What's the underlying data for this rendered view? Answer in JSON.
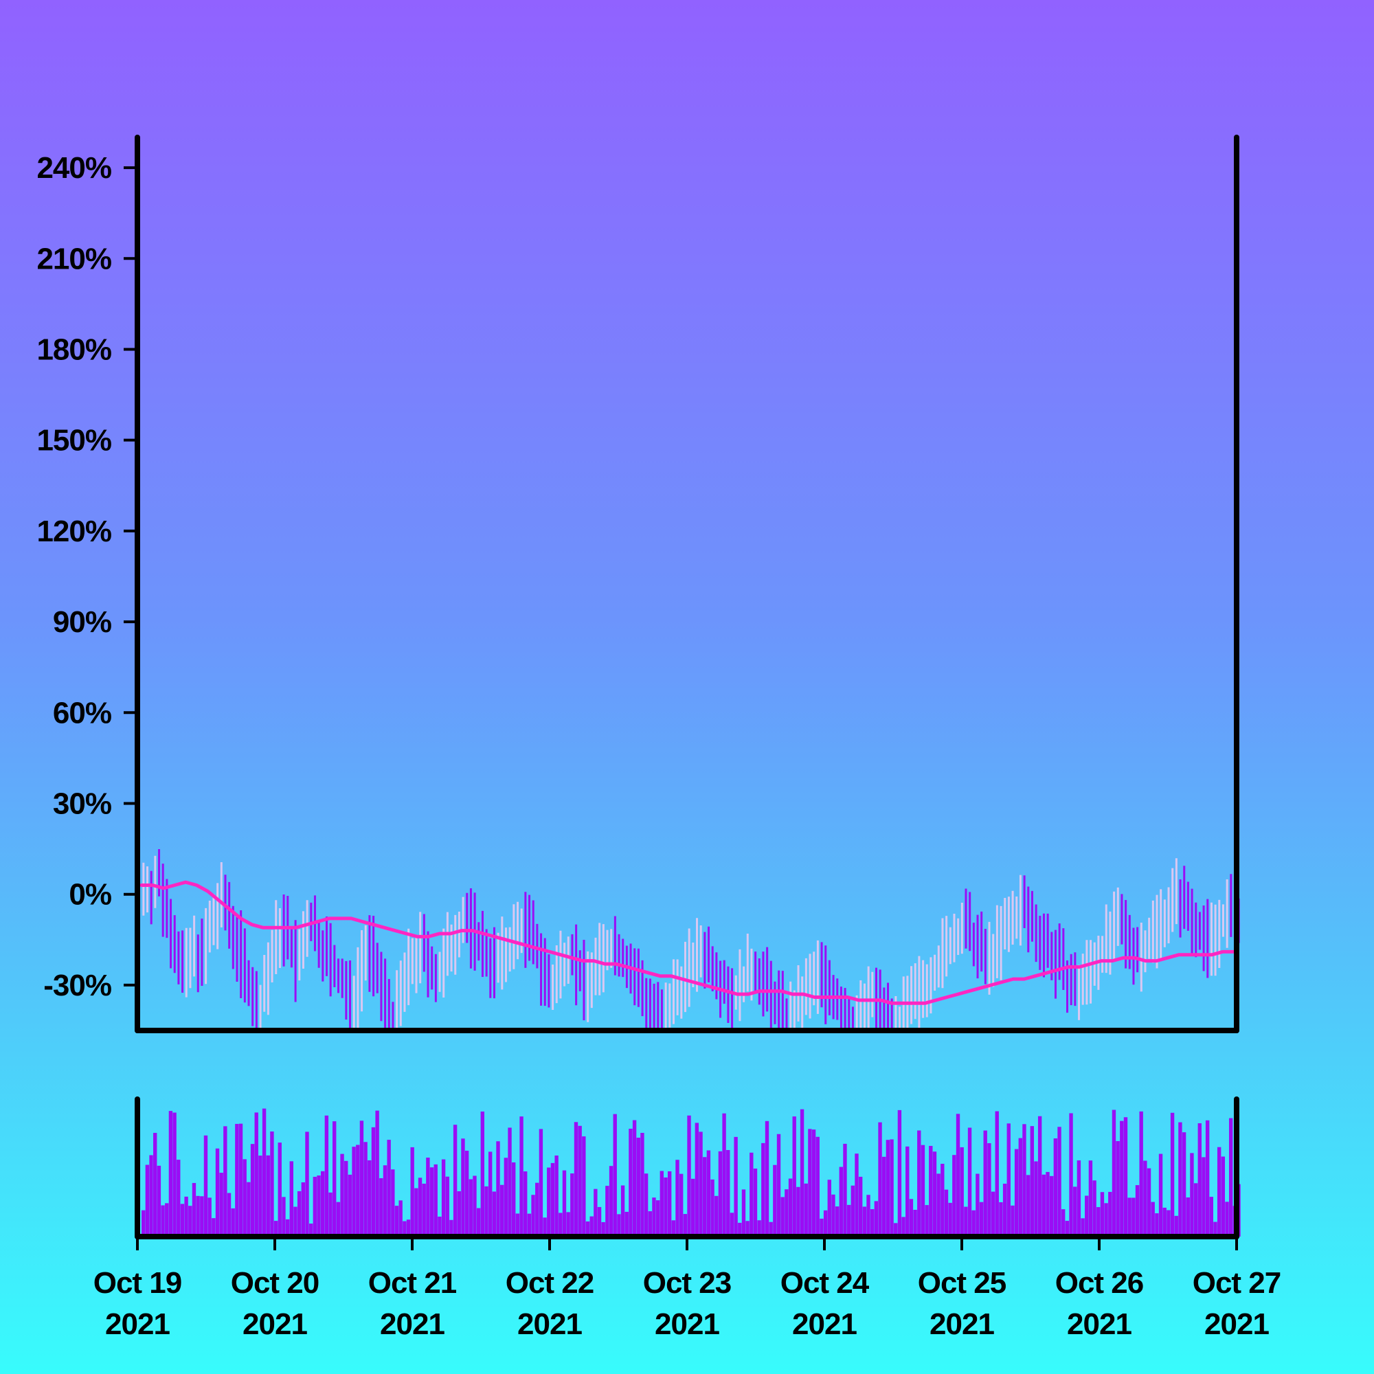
{
  "chart_data": {
    "type": "ohlc",
    "title": "",
    "xlabel": "",
    "ylabel": "",
    "y_unit": "%",
    "ylim": [
      -45,
      250
    ],
    "yticks": [
      -30,
      0,
      30,
      60,
      90,
      120,
      150,
      180,
      210,
      240
    ],
    "ytick_labels": [
      "-30%",
      "0%",
      "30%",
      "60%",
      "90%",
      "120%",
      "150%",
      "180%",
      "210%",
      "240%"
    ],
    "x_start": "2021-10-19",
    "x_end": "2021-10-27",
    "xticks": [
      {
        "date": "2021-10-19",
        "line1": "Oct 19",
        "line2": "2021"
      },
      {
        "date": "2021-10-20",
        "line1": "Oct 20",
        "line2": "2021"
      },
      {
        "date": "2021-10-21",
        "line1": "Oct 21",
        "line2": "2021"
      },
      {
        "date": "2021-10-22",
        "line1": "Oct 22",
        "line2": "2021"
      },
      {
        "date": "2021-10-23",
        "line1": "Oct 23",
        "line2": "2021"
      },
      {
        "date": "2021-10-24",
        "line1": "Oct 24",
        "line2": "2021"
      },
      {
        "date": "2021-10-25",
        "line1": "Oct 25",
        "line2": "2021"
      },
      {
        "date": "2021-10-26",
        "line1": "Oct 26",
        "line2": "2021"
      },
      {
        "date": "2021-10-27",
        "line1": "Oct 27",
        "line2": "2021"
      }
    ],
    "grid": false,
    "bars_per_day": 32,
    "series": [
      {
        "kind": "price_close_pct",
        "values": [
          2,
          3,
          2,
          5,
          4,
          -4,
          -6,
          -12,
          -18,
          -22,
          -26,
          -24,
          -20,
          -18,
          -20,
          -22,
          -14,
          -12,
          -8,
          -4,
          -2,
          -4,
          -10,
          -14,
          -18,
          -22,
          -26,
          -30,
          -36,
          -38,
          -34,
          -28,
          -24,
          -20,
          -14,
          -10,
          -12,
          -16,
          -20,
          -24,
          -20,
          -14,
          -8,
          -10,
          -14,
          -16,
          -18,
          -20,
          -24,
          -26,
          -28,
          -30,
          -34,
          -38,
          -32,
          -26,
          -20,
          -18,
          -20,
          -24,
          -28,
          -32,
          -36,
          -40,
          -42,
          -38,
          -32,
          -28,
          -24,
          -22,
          -20,
          -18,
          -20,
          -22,
          -26,
          -28,
          -26,
          -22,
          -18,
          -16,
          -12,
          -10,
          -8,
          -10,
          -12,
          -14,
          -16,
          -18,
          -20,
          -22,
          -24,
          -22,
          -20,
          -18,
          -16,
          -14,
          -12,
          -10,
          -12,
          -14,
          -16,
          -20,
          -24,
          -28,
          -32,
          -30,
          -26,
          -22,
          -20,
          -18,
          -20,
          -24,
          -28,
          -30,
          -28,
          -26,
          -24,
          -22,
          -20,
          -18,
          -16,
          -18,
          -20,
          -22,
          -24,
          -26,
          -28,
          -30,
          -34,
          -36,
          -38,
          -40,
          -42,
          -44,
          -40,
          -36,
          -32,
          -30,
          -28,
          -26,
          -24,
          -22,
          -20,
          -18,
          -20,
          -22,
          -24,
          -26,
          -28,
          -30,
          -32,
          -34,
          -32,
          -30,
          -28,
          -26,
          -24,
          -26,
          -28,
          -30,
          -32,
          -34,
          -36,
          -38,
          -40,
          -42,
          -40,
          -38,
          -36,
          -34,
          -32,
          -30,
          -28,
          -26,
          -28,
          -30,
          -32,
          -34,
          -36,
          -38,
          -40,
          -42,
          -44,
          -42,
          -40,
          -38,
          -36,
          -34,
          -36,
          -38,
          -40,
          -42,
          -44,
          -44,
          -42,
          -40,
          -38,
          -36,
          -34,
          -32,
          -30,
          -28,
          -26,
          -24,
          -22,
          -20,
          -18,
          -16,
          -14,
          -12,
          -10,
          -12,
          -14,
          -16,
          -18,
          -20,
          -22,
          -20,
          -18,
          -16,
          -14,
          -12,
          -10,
          -8,
          -6,
          -4,
          -6,
          -8,
          -10,
          -12,
          -14,
          -16,
          -18,
          -20,
          -22,
          -24,
          -26,
          -28,
          -30,
          -32,
          -30,
          -28,
          -26,
          -24,
          -22,
          -20,
          -18,
          -16,
          -14,
          -12,
          -10,
          -12,
          -14,
          -16,
          -18,
          -20,
          -18,
          -16,
          -14,
          -12,
          -10,
          -8,
          -6,
          -4,
          -2,
          0,
          -2,
          -4,
          -6,
          -8,
          -10,
          -12,
          -14,
          -16,
          -14,
          -12,
          -10,
          -8,
          -6,
          -8,
          -10,
          -12
        ]
      },
      {
        "kind": "moving_average_pct",
        "color": "#ff26c2",
        "values": [
          3,
          3,
          2,
          3,
          4,
          3,
          1,
          -2,
          -5,
          -8,
          -10,
          -11,
          -11,
          -11,
          -11,
          -10,
          -9,
          -8,
          -8,
          -8,
          -9,
          -10,
          -11,
          -12,
          -13,
          -14,
          -14,
          -13,
          -13,
          -12,
          -12,
          -13,
          -14,
          -15,
          -16,
          -17,
          -18,
          -19,
          -20,
          -21,
          -22,
          -22,
          -23,
          -23,
          -24,
          -25,
          -26,
          -27,
          -27,
          -28,
          -29,
          -30,
          -31,
          -32,
          -33,
          -33,
          -32,
          -32,
          -32,
          -33,
          -33,
          -34,
          -34,
          -34,
          -34,
          -35,
          -35,
          -35,
          -36,
          -36,
          -36,
          -36,
          -35,
          -34,
          -33,
          -32,
          -31,
          -30,
          -29,
          -28,
          -28,
          -27,
          -26,
          -25,
          -24,
          -24,
          -23,
          -22,
          -22,
          -21,
          -21,
          -22,
          -22,
          -21,
          -20,
          -20,
          -20,
          -20,
          -19,
          -19
        ]
      }
    ],
    "volume": {
      "unit": "relative",
      "ylim": [
        0,
        1
      ]
    }
  },
  "colors": {
    "background_top": "#9162ff",
    "background_bottom": "#38fcfc",
    "up_bar": "#d9c8f2",
    "down_bar": "#9a0df5",
    "volume_bar": "#9a0df5",
    "moving_average": "#ff26c2",
    "axes": "#000000"
  }
}
